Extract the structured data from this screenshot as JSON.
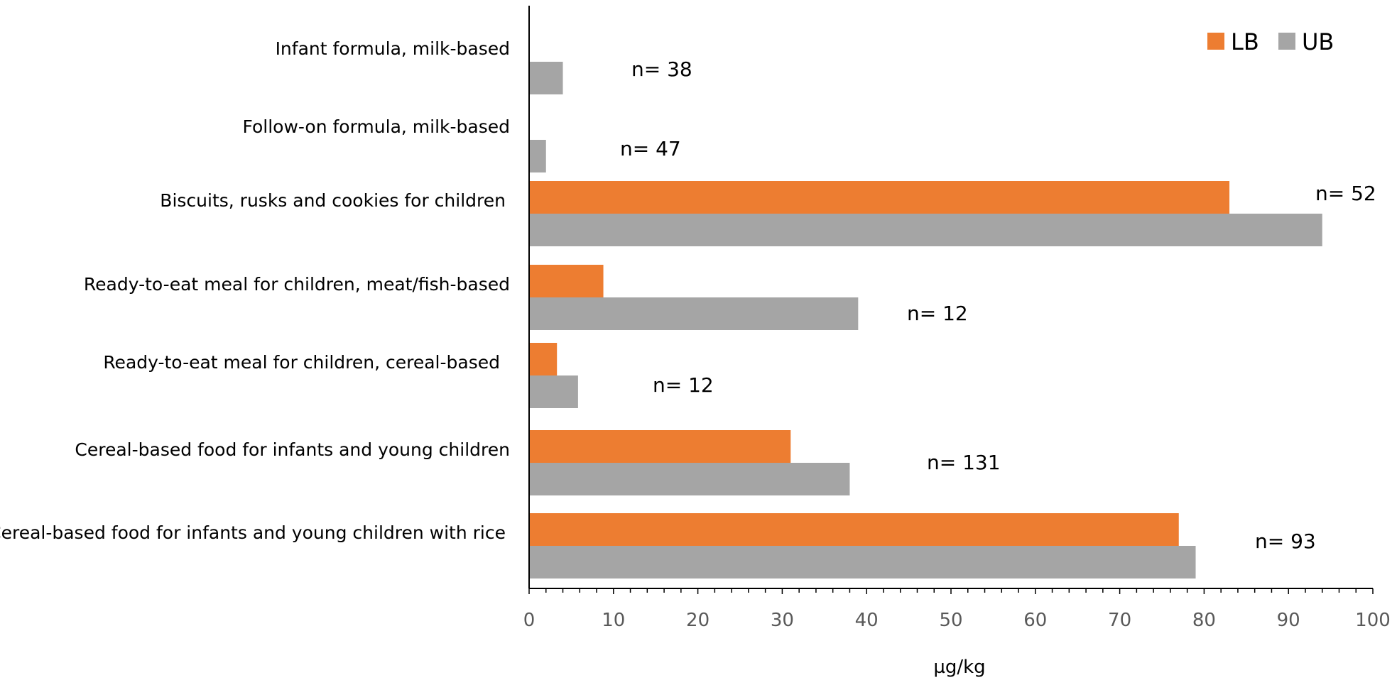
{
  "chart_data": {
    "type": "bar",
    "orientation": "horizontal",
    "title": "",
    "xlabel": "µg/kg",
    "ylabel": "",
    "xlim": [
      0,
      100
    ],
    "x_ticks": [
      0,
      10,
      20,
      30,
      40,
      50,
      60,
      70,
      80,
      90,
      100
    ],
    "grid": false,
    "legend_position": "top-right",
    "categories": [
      "Infant formula, milk-based",
      "Follow-on formula, milk-based",
      "Biscuits, rusks and cookies for children",
      "Ready-to-eat meal for children, meat/fish-based",
      "Ready-to-eat meal for children, cereal-based",
      "Cereal-based food for infants and young children",
      "Cereal-based food for infants and young children with rice"
    ],
    "series": [
      {
        "name": "LB",
        "color": "#ED7D31",
        "values": [
          0,
          0,
          83,
          8.8,
          3.3,
          31,
          77
        ]
      },
      {
        "name": "UB",
        "color": "#A5A5A5",
        "values": [
          4,
          2,
          94,
          39,
          5.8,
          38,
          79
        ]
      }
    ],
    "annotations": [
      "n= 38",
      "n= 47",
      "n= 52",
      "n= 12",
      "n= 12",
      "n= 131",
      "n= 93"
    ]
  }
}
